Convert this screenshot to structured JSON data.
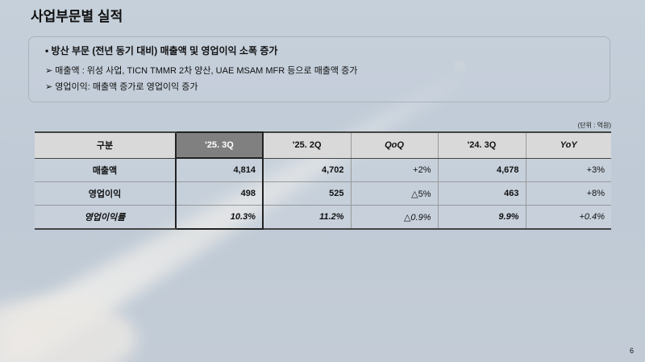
{
  "title": "사업부문별 실적",
  "summary": {
    "headline": "• 방산 부문 (전년 동기 대비) 매출액 및 영업이익 소폭 증가",
    "bullets": [
      "➢  매출액   : 위성 사업, TICN TMMR 2차 양산, UAE MSAM MFR 등으로 매출액 증가",
      "➢  영업이익: 매출액 증가로 영업이익 증가"
    ]
  },
  "unit": "(단위 : 억원)",
  "table": {
    "headers": [
      "구분",
      "'25. 3Q",
      "'25. 2Q",
      "QoQ",
      "'24. 3Q",
      "YoY"
    ],
    "rows": [
      [
        "매출액",
        "4,814",
        "4,702",
        "+2%",
        "4,678",
        "+3%"
      ],
      [
        "영업이익",
        "498",
        "525",
        "△5%",
        "463",
        "+8%"
      ],
      [
        "영업이익률",
        "10.3%",
        "11.2%",
        "△0.9%",
        "9.9%",
        "+0.4%"
      ]
    ]
  },
  "page_number": "6"
}
